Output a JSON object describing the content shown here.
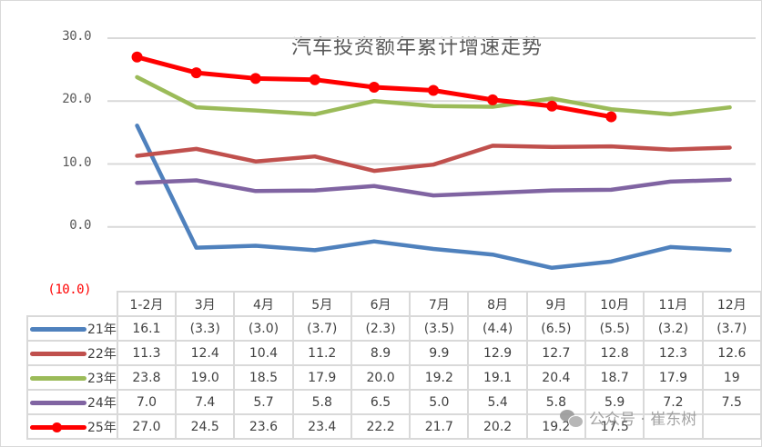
{
  "chart_data": {
    "type": "line",
    "title": "汽车投资额年累计增速走势",
    "xlabel": "",
    "ylabel": "",
    "ylim": [
      -10,
      30
    ],
    "y_ticks": [
      "30.0",
      "20.0",
      "10.0",
      "0.0",
      "(10.0)"
    ],
    "grid": true,
    "legend_position": "data-table-left",
    "categories": [
      "1-2月",
      "3月",
      "4月",
      "5月",
      "6月",
      "7月",
      "8月",
      "9月",
      "10月",
      "11月",
      "12月"
    ],
    "series": [
      {
        "name": "21年",
        "color": "#4f81bd",
        "marker": false,
        "values": [
          16.1,
          -3.3,
          -3.0,
          -3.7,
          -2.3,
          -3.5,
          -4.4,
          -6.5,
          -5.5,
          -3.2,
          -3.7
        ],
        "labels": [
          "16.1",
          "(3.3)",
          "(3.0)",
          "(3.7)",
          "(2.3)",
          "(3.5)",
          "(4.4)",
          "(6.5)",
          "(5.5)",
          "(3.2)",
          "(3.7)"
        ]
      },
      {
        "name": "22年",
        "color": "#c0504d",
        "marker": false,
        "values": [
          11.3,
          12.4,
          10.4,
          11.2,
          8.9,
          9.9,
          12.9,
          12.7,
          12.8,
          12.3,
          12.6
        ],
        "labels": [
          "11.3",
          "12.4",
          "10.4",
          "11.2",
          "8.9",
          "9.9",
          "12.9",
          "12.7",
          "12.8",
          "12.3",
          "12.6"
        ]
      },
      {
        "name": "23年",
        "color": "#9bbb59",
        "marker": false,
        "values": [
          23.8,
          19.0,
          18.5,
          17.9,
          20.0,
          19.2,
          19.1,
          20.4,
          18.7,
          17.9,
          19
        ],
        "labels": [
          "23.8",
          "19.0",
          "18.5",
          "17.9",
          "20.0",
          "19.2",
          "19.1",
          "20.4",
          "18.7",
          "17.9",
          "19"
        ]
      },
      {
        "name": "24年",
        "color": "#8064a2",
        "marker": false,
        "values": [
          7.0,
          7.4,
          5.7,
          5.8,
          6.5,
          5.0,
          5.4,
          5.8,
          5.9,
          7.2,
          7.5
        ],
        "labels": [
          "7.0",
          "7.4",
          "5.7",
          "5.8",
          "6.5",
          "5.0",
          "5.4",
          "5.8",
          "5.9",
          "7.2",
          "7.5"
        ]
      },
      {
        "name": "25年",
        "color": "#ff0000",
        "marker": true,
        "values": [
          27.0,
          24.5,
          23.6,
          23.4,
          22.2,
          21.7,
          20.2,
          19.2,
          17.5,
          null,
          null
        ],
        "labels": [
          "27.0",
          "24.5",
          "23.6",
          "23.4",
          "22.2",
          "21.7",
          "20.2",
          "19.2",
          "17.5",
          "",
          ""
        ]
      }
    ]
  },
  "watermark": {
    "text": "公众号 · 崔东树"
  }
}
